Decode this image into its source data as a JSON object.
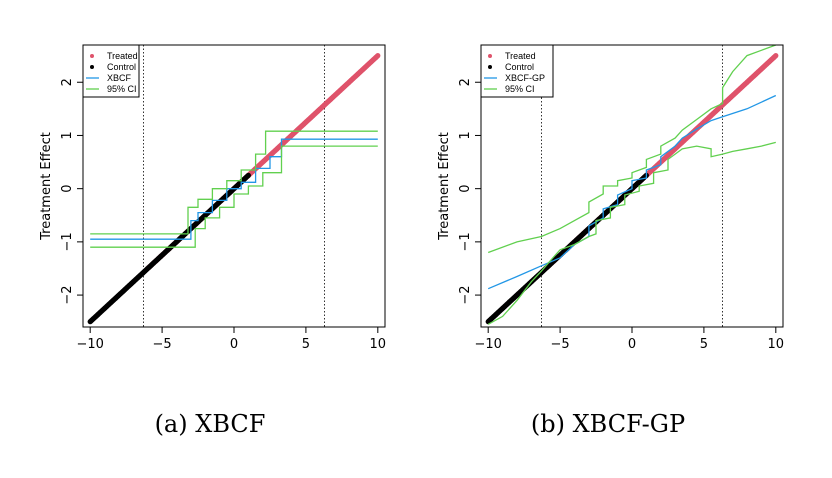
{
  "colors": {
    "treated": "#df536b",
    "control": "#000000",
    "fit": "#2297e6",
    "ci": "#61d04f",
    "guide": "#000000"
  },
  "chart_data": [
    {
      "type": "scatter",
      "caption": "(a) XBCF",
      "ylabel": "Treatment Effect",
      "xlabel": "",
      "xlim": [
        -10.5,
        10.5
      ],
      "ylim": [
        -2.6,
        2.7
      ],
      "xticks": [
        -10,
        -5,
        0,
        5,
        10
      ],
      "yticks": [
        -2,
        -1,
        0,
        1,
        2
      ],
      "vlines": [
        -6.3,
        6.3
      ],
      "grid": false,
      "legend_position": "top-left",
      "legend": [
        "Treated",
        "Control",
        "XBCF",
        "95% CI"
      ],
      "treated": {
        "line": "y = x/4",
        "x_range": [
          -6,
          10
        ]
      },
      "control": {
        "line": "y = x/4",
        "x_range": [
          -10,
          1
        ]
      },
      "series": [
        {
          "name": "XBCF",
          "x": [
            -10,
            -3,
            -3,
            -2.5,
            -2.5,
            -1.5,
            -1.5,
            -0.5,
            -0.5,
            0.5,
            0.5,
            1.5,
            1.5,
            2.5,
            2.5,
            3.3,
            3.3,
            10
          ],
          "y": [
            -0.95,
            -0.95,
            -0.6,
            -0.6,
            -0.45,
            -0.45,
            -0.22,
            -0.22,
            0,
            0,
            0.12,
            0.12,
            0.38,
            0.38,
            0.6,
            0.6,
            0.93,
            0.93
          ]
        },
        {
          "name": "95% CI upper",
          "x": [
            -10,
            -3.2,
            -3.2,
            -2.5,
            -2.5,
            -1.5,
            -1.5,
            -0.5,
            -0.5,
            0.5,
            0.5,
            1.5,
            1.5,
            2.2,
            2.2,
            10
          ],
          "y": [
            -0.85,
            -0.85,
            -0.35,
            -0.35,
            -0.2,
            -0.2,
            0,
            0,
            0.15,
            0.15,
            0.35,
            0.35,
            0.65,
            0.65,
            1.08,
            1.08
          ]
        },
        {
          "name": "95% CI lower",
          "x": [
            -10,
            -2.7,
            -2.7,
            -2,
            -2,
            -1,
            -1,
            0,
            0,
            1,
            1,
            2,
            2,
            3.3,
            3.3,
            10
          ],
          "y": [
            -1.1,
            -1.1,
            -0.75,
            -0.75,
            -0.55,
            -0.55,
            -0.35,
            -0.35,
            -0.1,
            -0.1,
            0.05,
            0.05,
            0.3,
            0.3,
            0.8,
            0.8
          ]
        }
      ]
    },
    {
      "type": "scatter",
      "caption": "(b) XBCF-GP",
      "ylabel": "Treatment Effect",
      "xlabel": "",
      "xlim": [
        -10.5,
        10.5
      ],
      "ylim": [
        -2.6,
        2.7
      ],
      "xticks": [
        -10,
        -5,
        0,
        5,
        10
      ],
      "yticks": [
        -2,
        -1,
        0,
        1,
        2
      ],
      "vlines": [
        -6.3,
        6.3
      ],
      "grid": false,
      "legend_position": "top-left",
      "legend": [
        "Treated",
        "Control",
        "XBCF-GP",
        "95% CI"
      ],
      "treated": {
        "line": "y = x/4",
        "x_range": [
          -6,
          10
        ]
      },
      "control": {
        "line": "y = x/4",
        "x_range": [
          -10,
          1
        ]
      },
      "series": [
        {
          "name": "XBCF-GP",
          "x": [
            -10,
            -8,
            -6.3,
            -5,
            -4,
            -3,
            -3,
            -2,
            -2,
            -1,
            -1,
            0,
            0,
            1,
            1,
            2,
            2,
            3,
            3.5,
            4.5,
            5.5,
            6.3,
            8,
            10
          ],
          "y": [
            -1.88,
            -1.65,
            -1.45,
            -1.3,
            -1.05,
            -0.9,
            -0.7,
            -0.55,
            -0.38,
            -0.3,
            -0.12,
            0,
            0.15,
            0.2,
            0.35,
            0.45,
            0.6,
            0.8,
            0.95,
            1.12,
            1.28,
            1.35,
            1.5,
            1.75
          ]
        },
        {
          "name": "95% CI upper",
          "x": [
            -10,
            -8,
            -6.3,
            -5,
            -4,
            -3,
            -3,
            -2,
            -2,
            -1,
            -1,
            0,
            0,
            1,
            1,
            2,
            2,
            3,
            3.5,
            4.5,
            5.5,
            6.3,
            6.3,
            7,
            8,
            9,
            10
          ],
          "y": [
            -1.2,
            -1.0,
            -0.9,
            -0.75,
            -0.6,
            -0.45,
            -0.25,
            -0.1,
            0.05,
            0.05,
            0.15,
            0.2,
            0.3,
            0.4,
            0.55,
            0.65,
            0.8,
            0.95,
            1.1,
            1.3,
            1.5,
            1.6,
            1.9,
            2.2,
            2.5,
            2.6,
            2.7
          ]
        },
        {
          "name": "95% CI lower",
          "x": [
            -10,
            -9,
            -8,
            -7,
            -6.3,
            -5.5,
            -5,
            -4,
            -3,
            -2.5,
            -2.5,
            -1.5,
            -1.5,
            -0.5,
            -0.5,
            0.5,
            0.5,
            1.5,
            1.5,
            2.5,
            2.5,
            3.5,
            4.5,
            5.5,
            5.5,
            6.3,
            7,
            8,
            9,
            10
          ],
          "y": [
            -2.55,
            -2.4,
            -2.1,
            -1.75,
            -1.55,
            -1.3,
            -1.15,
            -1.05,
            -0.9,
            -0.85,
            -0.6,
            -0.55,
            -0.35,
            -0.3,
            -0.12,
            -0.05,
            0.05,
            0.1,
            0.3,
            0.35,
            0.55,
            0.75,
            0.8,
            0.75,
            0.6,
            0.65,
            0.7,
            0.75,
            0.8,
            0.87
          ]
        }
      ]
    }
  ]
}
